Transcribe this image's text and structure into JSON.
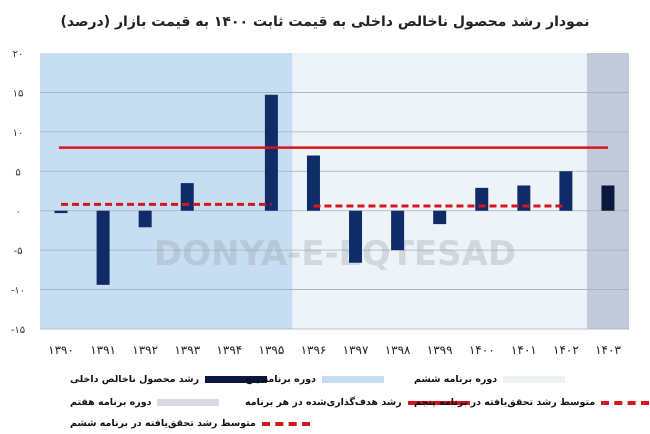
{
  "chart_data": {
    "type": "bar",
    "title": "نمودار رشد محصول ناخالص داخلی به قیمت ثابت ۱۴۰۰ به قیمت بازار (درصد)",
    "categories": [
      "۱۳۹۰",
      "۱۳۹۱",
      "۱۳۹۲",
      "۱۳۹۳",
      "۱۳۹۴",
      "۱۳۹۵",
      "۱۳۹۶",
      "۱۳۹۷",
      "۱۳۹۸",
      "۱۳۹۹",
      "۱۴۰۰",
      "۱۴۰۱",
      "۱۴۰۲",
      "۱۴۰۳"
    ],
    "years": [
      1390,
      1391,
      1392,
      1393,
      1394,
      1395,
      1396,
      1397,
      1398,
      1399,
      1400,
      1401,
      1402,
      1403
    ],
    "series": [
      {
        "name": "رشد محصول ناخالص داخلی",
        "values": [
          -0.3,
          -9.4,
          -2.1,
          3.5,
          0,
          14.7,
          7.0,
          -6.6,
          -5.0,
          -1.7,
          2.9,
          3.2,
          5.0,
          3.2
        ],
        "color": "#0f2c68",
        "last_color": "#0a1840"
      }
    ],
    "target_line": {
      "name": "رشد هدف‌گذاری‌شده در هر برنامه",
      "value": 8,
      "from": "۱۳۹۰",
      "to": "۱۴۰۳",
      "color": "#d8141c"
    },
    "avg_fifth": {
      "name": "متوسط رشد تحقق‌یافته در برنامه پنجم",
      "value": 0.8,
      "from": "۱۳۹۰",
      "to": "۱۳۹۵",
      "color": "#d8141c"
    },
    "avg_sixth": {
      "name": "متوسط رشد تحقق‌یافته در برنامه ششم",
      "value": 0.6,
      "from": "۱۳۹۶",
      "to": "۱۴۰۲",
      "color": "#d8141c"
    },
    "periods": [
      {
        "name": "دوره برنامه پنجم",
        "from": "۱۳۹۰",
        "to": "۱۳۹۵",
        "color": "#c6ddf2",
        "legend_color": "#c6ddf2"
      },
      {
        "name": "دوره برنامه ششم",
        "from": "۱۳۹۶",
        "to": "۱۴۰۲",
        "color": "#eef3f8",
        "legend_color": "#eef1f5"
      },
      {
        "name": "دوره برنامه هفتم",
        "from": "۱۴۰۳",
        "to": "۱۴۰۳",
        "color": "#c3cad9",
        "legend_color": "#ddd6e6"
      }
    ],
    "ylim": [
      -15,
      20
    ],
    "yticks": [
      20,
      15,
      10,
      5,
      0,
      -5,
      -10,
      -15
    ],
    "ytick_labels": [
      "۲۰",
      "۱۵",
      "۱۰",
      "۵",
      "۰",
      "-۵",
      "-۱۰",
      "-۱۵"
    ],
    "grid": true,
    "legend_placement": "bottom",
    "watermark": "DONYA-E-EQTESAD"
  },
  "legend": {
    "gdp": "رشد محصول ناخالص داخلی",
    "fifth": "دوره برنامه پنج",
    "sixth": "دوره برنامه ششم",
    "seventh": "دوره برنامه هفتم",
    "target": "رشد هدف‌گذاری‌شده در هر برنامه",
    "avg_fifth": "متوسط رشد تحقق‌یافته در برنامه پنجم",
    "avg_sixth": "متوسط رشد تحقق‌یافته در برنامه ششم"
  }
}
